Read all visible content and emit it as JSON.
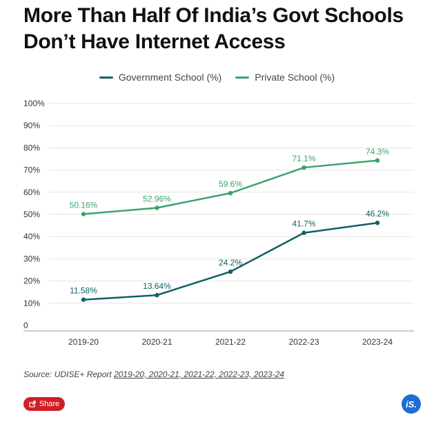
{
  "title": "More Than Half Of India’s Govt Schools Don’t Have Internet Access",
  "source_prefix": "Source: UDISE+ Report ",
  "source_links": "2019-20, 2020-21, 2021-22, 2022-23, 2023-24",
  "share_label": "Share",
  "logo_text": "iS.",
  "colors": {
    "government": "#0f5f66",
    "private": "#3aa36b",
    "grid": "#e6e6e6",
    "axis": "#999999"
  },
  "chart_data": {
    "type": "line",
    "categories": [
      "2019-20",
      "2020-21",
      "2021-22",
      "2022-23",
      "2023-24"
    ],
    "series": [
      {
        "name": "Government School (%)",
        "values": [
          11.58,
          13.64,
          24.2,
          41.7,
          46.2
        ],
        "labels": [
          "11.58%",
          "13.64%",
          "24.2%",
          "41.7%",
          "46.2%"
        ],
        "color": "#0f5f66"
      },
      {
        "name": "Private School (%)",
        "values": [
          50.16,
          52.96,
          59.6,
          71.1,
          74.3
        ],
        "labels": [
          "50.16%",
          "52.96%",
          "59.6%",
          "71.1%",
          "74.3%"
        ],
        "color": "#3aa36b"
      }
    ],
    "yticks": [
      "0",
      "10%",
      "20%",
      "30%",
      "40%",
      "50%",
      "60%",
      "70%",
      "80%",
      "90%",
      "100%"
    ],
    "ylim": [
      0,
      100
    ],
    "grid": true,
    "legend": "top-center"
  }
}
